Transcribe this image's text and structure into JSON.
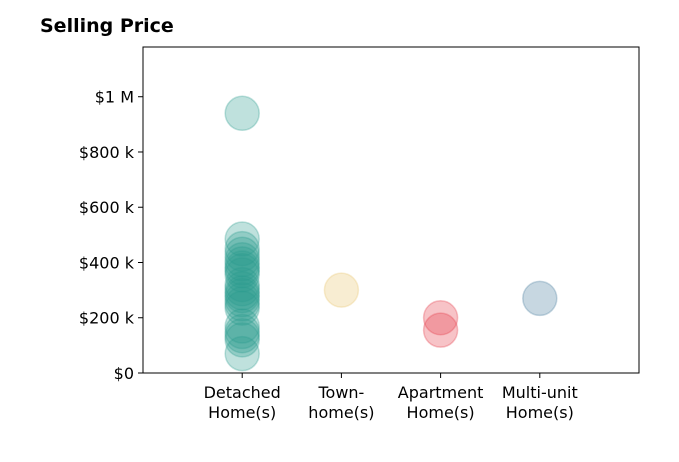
{
  "chart_data": {
    "type": "scatter",
    "title": "Selling Price",
    "xlabel": "",
    "ylabel": "",
    "categories": [
      [
        "Detached",
        "Home(s)"
      ],
      [
        "Town-",
        "home(s)"
      ],
      [
        "Apartment",
        "Home(s)"
      ],
      [
        "Multi-unit",
        "Home(s)"
      ]
    ],
    "y_ticks": [
      {
        "value": 0,
        "label": "$0"
      },
      {
        "value": 200000,
        "label": "$200 k"
      },
      {
        "value": 400000,
        "label": "$400 k"
      },
      {
        "value": 600000,
        "label": "$600 k"
      },
      {
        "value": 800000,
        "label": "$800 k"
      },
      {
        "value": 1000000,
        "label": "$1 M"
      }
    ],
    "ylim": [
      0,
      1180000
    ],
    "xlim": [
      -1,
      4
    ],
    "grid": false,
    "colors": [
      "#2a9d8f",
      "#e9c46a",
      "#e63946",
      "#457b9d"
    ],
    "series": [
      {
        "category_index": 0,
        "color": "#2a9d8f",
        "values": [
          940000,
          485000,
          450000,
          430000,
          410000,
          395000,
          380000,
          370000,
          355000,
          320000,
          305000,
          290000,
          280000,
          265000,
          250000,
          235000,
          170000,
          150000,
          135000,
          120000,
          70000
        ]
      },
      {
        "category_index": 1,
        "color": "#e9c46a",
        "values": [
          300000
        ]
      },
      {
        "category_index": 2,
        "color": "#e63946",
        "values": [
          200000,
          155000
        ]
      },
      {
        "category_index": 3,
        "color": "#457b9d",
        "values": [
          270000
        ]
      }
    ]
  }
}
